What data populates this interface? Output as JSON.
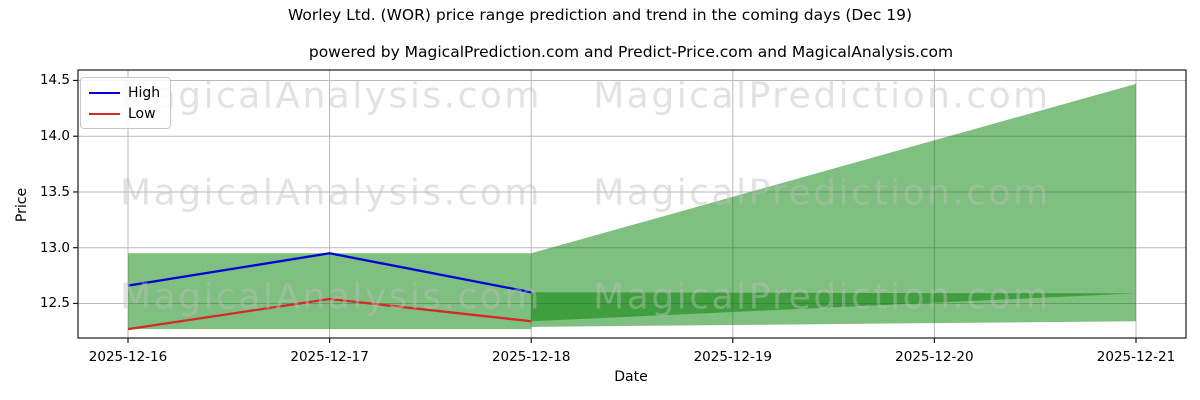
{
  "chart_data": {
    "type": "line",
    "title": "Worley Ltd. (WOR) price range prediction and trend in the coming days (Dec 19)",
    "subtitle": "powered by MagicalPrediction.com and Predict-Price.com and MagicalAnalysis.com",
    "xlabel": "Date",
    "ylabel": "Price",
    "categories": [
      "2025-12-16",
      "2025-12-17",
      "2025-12-18",
      "2025-12-19",
      "2025-12-20",
      "2025-12-21"
    ],
    "y_ticks": [
      12.5,
      13.0,
      13.5,
      14.0,
      14.5
    ],
    "ylim": [
      12.19,
      14.594
    ],
    "grid": true,
    "legend_position": "upper-left",
    "series": [
      {
        "name": "High",
        "color": "#0000d8",
        "x_indices": [
          0,
          1,
          2
        ],
        "values": [
          12.66,
          12.95,
          12.6
        ]
      },
      {
        "name": "Low",
        "color": "#d42a2a",
        "x_indices": [
          0,
          1,
          2
        ],
        "values": [
          12.27,
          12.54,
          12.34
        ]
      }
    ],
    "bands": [
      {
        "name": "historical-range",
        "color": "rgba(0,128,0,0.5)",
        "x_indices": [
          0,
          2
        ],
        "top": [
          12.95,
          12.95
        ],
        "bottom": [
          12.27,
          12.27
        ]
      },
      {
        "name": "forecast-range",
        "color": "rgba(0,128,0,0.5)",
        "x_indices": [
          2,
          5
        ],
        "top": [
          12.95,
          14.47
        ],
        "bottom": [
          12.29,
          12.34
        ]
      },
      {
        "name": "forecast-trend",
        "color": "rgba(0,128,0,0.5)",
        "x_indices": [
          2,
          5
        ],
        "top": [
          12.6,
          12.59
        ],
        "bottom": [
          12.34,
          12.59
        ]
      }
    ],
    "watermark": {
      "texts": [
        "MagicalAnalysis.com",
        "MagicalPrediction.com"
      ],
      "color": "rgba(190,190,190,0.45)"
    },
    "grid_color": "#b9b9b9",
    "frame_color": "#1a1a1a"
  }
}
